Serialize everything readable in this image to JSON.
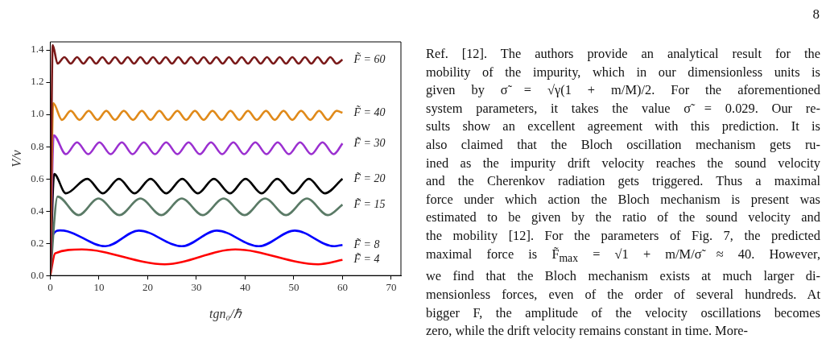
{
  "chart_data": {
    "type": "line",
    "xlabel": "tgn₀/ℏ",
    "ylabel": "V/v",
    "xlim": [
      0,
      72
    ],
    "xticks": [
      0,
      10,
      20,
      30,
      40,
      50,
      60,
      70
    ],
    "ylim": [
      0,
      1.45
    ],
    "yticks": [
      {
        "value": 0,
        "label": "0.0"
      },
      {
        "value": 0.2,
        "label": "0.2"
      },
      {
        "value": 0.4,
        "label": "0.4"
      },
      {
        "value": 0.6,
        "label": "0.6"
      },
      {
        "value": 0.8,
        "label": "0.8"
      },
      {
        "value": 1,
        "label": "1.0"
      },
      {
        "value": 1.2,
        "label": "1.2"
      },
      {
        "value": 1.4,
        "label": "1.4"
      }
    ],
    "grid": false,
    "series": [
      {
        "name": "F̃ = 60",
        "color": "#7a1a1a",
        "x": [
          0,
          0.5,
          1.5,
          2.9,
          4.2,
          5.5,
          6.8,
          8.1,
          9.4,
          10.7,
          12.0,
          13.3,
          14.6,
          15.9,
          17.2,
          18.5,
          19.8,
          21.1,
          22.4,
          23.7,
          25.0,
          26.3,
          27.6,
          28.9,
          30.2,
          31.5,
          32.8,
          34.1,
          35.4,
          36.7,
          38.0,
          39.3,
          40.6,
          41.9,
          43.2,
          44.5,
          45.8,
          47.1,
          48.4,
          49.7,
          51.0,
          52.3,
          53.6,
          54.9,
          56.2,
          57.5,
          58.8,
          60
        ],
        "values": [
          0,
          1.43,
          1.315,
          1.355,
          1.315,
          1.355,
          1.315,
          1.355,
          1.315,
          1.355,
          1.315,
          1.355,
          1.315,
          1.355,
          1.315,
          1.355,
          1.315,
          1.355,
          1.315,
          1.355,
          1.315,
          1.355,
          1.315,
          1.355,
          1.315,
          1.355,
          1.315,
          1.355,
          1.315,
          1.355,
          1.315,
          1.355,
          1.315,
          1.355,
          1.315,
          1.355,
          1.315,
          1.355,
          1.315,
          1.355,
          1.315,
          1.355,
          1.315,
          1.355,
          1.315,
          1.355,
          1.315,
          1.34
        ]
      },
      {
        "name": "F̃ = 40",
        "color": "#e08a1a",
        "x": [
          0,
          0.6,
          2.4,
          4.2,
          6.0,
          7.9,
          9.7,
          11.5,
          13.3,
          15.1,
          17.0,
          18.8,
          20.6,
          22.4,
          24.2,
          26.1,
          27.9,
          29.7,
          31.5,
          33.3,
          35.2,
          37.0,
          38.8,
          40.6,
          42.4,
          44.3,
          46.1,
          47.9,
          49.7,
          51.5,
          53.4,
          55.2,
          57.0,
          58.8,
          60
        ],
        "values": [
          0,
          1.07,
          0.966,
          1.022,
          0.966,
          1.022,
          0.966,
          1.022,
          0.966,
          1.022,
          0.966,
          1.022,
          0.966,
          1.022,
          0.966,
          1.022,
          0.966,
          1.022,
          0.966,
          1.022,
          0.966,
          1.022,
          0.966,
          1.022,
          0.966,
          1.022,
          0.966,
          1.022,
          0.966,
          1.022,
          0.966,
          1.022,
          0.966,
          1.022,
          1.01
        ]
      },
      {
        "name": "F̃ = 30",
        "color": "#9b30d0",
        "x": [
          0,
          0.7,
          3.2,
          5.5,
          7.8,
          10.1,
          12.4,
          14.7,
          16.9,
          19.2,
          21.5,
          23.8,
          26.1,
          28.4,
          30.7,
          33.0,
          35.3,
          37.6,
          39.8,
          42.1,
          44.4,
          46.7,
          49.0,
          51.3,
          53.6,
          55.9,
          58.2,
          60
        ],
        "values": [
          0,
          0.87,
          0.753,
          0.827,
          0.753,
          0.827,
          0.753,
          0.827,
          0.753,
          0.827,
          0.753,
          0.827,
          0.753,
          0.827,
          0.753,
          0.827,
          0.753,
          0.827,
          0.753,
          0.827,
          0.753,
          0.827,
          0.753,
          0.827,
          0.753,
          0.827,
          0.753,
          0.82
        ]
      },
      {
        "name": "F̃ = 20",
        "color": "#000000",
        "x": [
          0,
          0.8,
          3.2,
          7.6,
          10.8,
          14.1,
          17.3,
          20.6,
          23.8,
          27.1,
          30.3,
          33.6,
          36.9,
          40.1,
          43.4,
          46.6,
          49.9,
          53.1,
          56.4,
          60
        ],
        "values": [
          0,
          0.63,
          0.51,
          0.6,
          0.51,
          0.6,
          0.51,
          0.6,
          0.51,
          0.6,
          0.51,
          0.6,
          0.51,
          0.6,
          0.51,
          0.6,
          0.51,
          0.6,
          0.51,
          0.6
        ]
      },
      {
        "name": "F̃ = 15",
        "color": "#5a7a66",
        "x": [
          0,
          1.5,
          5.8,
          9.9,
          14.2,
          18.5,
          22.8,
          27.0,
          31.3,
          35.6,
          39.9,
          44.1,
          48.4,
          52.7,
          57.0,
          60
        ],
        "values": [
          0,
          0.49,
          0.375,
          0.478,
          0.375,
          0.478,
          0.375,
          0.478,
          0.375,
          0.478,
          0.375,
          0.478,
          0.375,
          0.478,
          0.375,
          0.44
        ]
      },
      {
        "name": "F̃ = 8",
        "color": "#0000ff",
        "x": [
          0,
          0.5,
          2,
          3.5,
          11.3,
          18.2,
          27.0,
          34.2,
          42.8,
          50.2,
          58.3,
          60
        ],
        "values": [
          0,
          0.25,
          0.28,
          0.275,
          0.182,
          0.279,
          0.182,
          0.279,
          0.182,
          0.279,
          0.182,
          0.19
        ]
      },
      {
        "name": "F̃ = 4",
        "color": "#ff0000",
        "x": [
          0,
          1,
          6.5,
          23.5,
          38,
          55,
          60
        ],
        "values": [
          0,
          0.138,
          0.162,
          0.07,
          0.162,
          0.07,
          0.097
        ]
      }
    ],
    "annotations": [
      "8",
      "Ref. [12]. The authors provide an analytical result for the",
      "mobility of the impurity, which in our dimensionless units is",
      "given by σ̃ = √γ(1 + m/M)/2. For the aforementioned",
      "system parameters, it takes the value σ̃ = 0.029. Our re-",
      "sults show an excellent agreement with this prediction. It is",
      "also claimed that the Bloch oscillation mechanism gets ru-",
      "ined as the impurity drift velocity reaches the sound velocity",
      "and the Cherenkov radiation gets triggered. Thus a maximal",
      "force under which action the Bloch mechanism is present was",
      "estimated to be given by the ratio of the sound velocity and",
      "the mobility [12]. For the parameters of Fig. 7, the predicted",
      "maximal force is F̃$_{max}$ = √1 + m/M/σ̃ ≈ 40. However,",
      "we find that the Bloch mechanism exists at much larger di-",
      "mensionless forces, even of the order of several hundreds. At",
      "bigger F, the amplitude of the velocity oscillations becomes",
      "zero, while the drift velocity remains constant in time. More-"
    ]
  }
}
